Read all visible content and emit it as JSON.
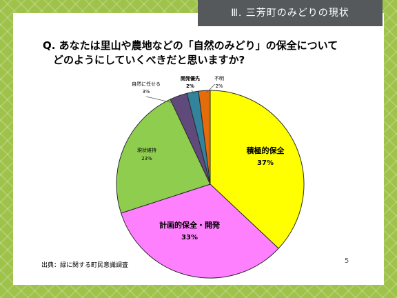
{
  "header": {
    "title": "Ⅲ. 三芳町のみどりの現状"
  },
  "question": {
    "line1": "Q. あなたは里山や農地などの「自然のみどり」の保全について",
    "line2": "どのようにしていくべきだと思いますか?"
  },
  "footer": {
    "source": "出典：緑に関する町民意識調査",
    "page": "5"
  },
  "chart_data": {
    "type": "pie",
    "categories": [
      "積極的保全",
      "計画的保全・開発",
      "現状維持",
      "自然に任せる",
      "開発優先",
      "不明"
    ],
    "values": [
      37,
      33,
      23,
      3,
      2,
      2
    ],
    "labels": [
      "37%",
      "33%",
      "23%",
      "3%",
      "2%",
      "2%"
    ],
    "colors": [
      "#ffff00",
      "#ff80ff",
      "#8fcd4f",
      "#604a7b",
      "#31849b",
      "#e46c0a"
    ],
    "start": "12 o'clock",
    "direction": "clockwise",
    "legend": "none"
  }
}
